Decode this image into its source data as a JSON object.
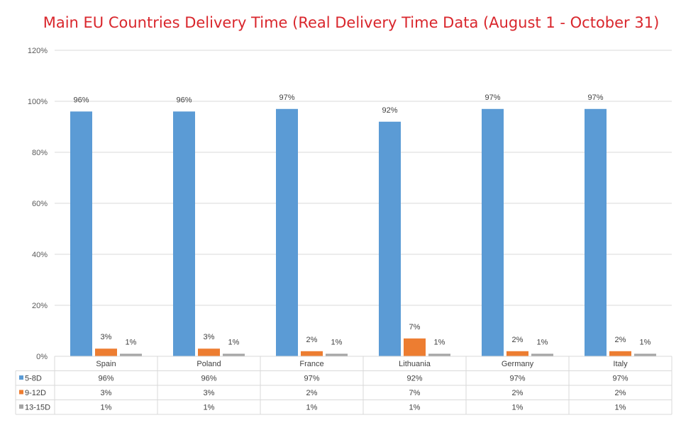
{
  "chart_data": {
    "type": "bar",
    "title": "Main EU Countries Delivery Time (Real Delivery Time Data (August 1 - October 31)",
    "categories": [
      "Spain",
      "Poland",
      "France",
      "Lithuania",
      "Germany",
      "Italy"
    ],
    "series": [
      {
        "name": "5-8D",
        "values": [
          96,
          96,
          97,
          92,
          97,
          97
        ],
        "labels": [
          "96%",
          "96%",
          "97%",
          "92%",
          "97%",
          "97%"
        ],
        "color": "#5b9bd5"
      },
      {
        "name": "9-12D",
        "values": [
          3,
          3,
          2,
          7,
          2,
          2
        ],
        "labels": [
          "3%",
          "3%",
          "2%",
          "7%",
          "2%",
          "2%"
        ],
        "color": "#ed7d31"
      },
      {
        "name": "13-15D",
        "values": [
          1,
          1,
          1,
          1,
          1,
          1
        ],
        "labels": [
          "1%",
          "1%",
          "1%",
          "1%",
          "1%",
          "1%"
        ],
        "color": "#a5a5a5"
      }
    ],
    "ylim": [
      0,
      120
    ],
    "yticks": [
      0,
      20,
      40,
      60,
      80,
      100,
      120
    ],
    "ytick_labels": [
      "0%",
      "20%",
      "40%",
      "60%",
      "80%",
      "100%",
      "120%"
    ],
    "grid": true,
    "legend": "data-table"
  }
}
